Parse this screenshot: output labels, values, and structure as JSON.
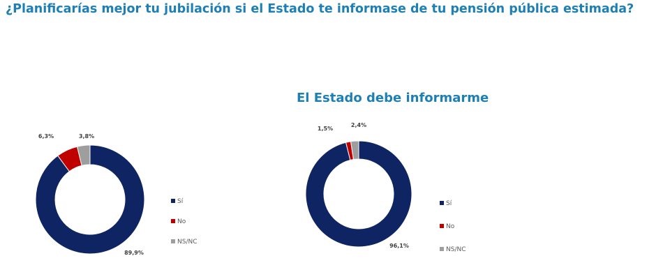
{
  "page": {
    "title": "¿Planificarías mejor tu jubilación si el Estado te informase de tu pensión pública estimada?"
  },
  "chart_data": [
    {
      "type": "pie",
      "style": "donut",
      "title": "",
      "categories": [
        "Sí",
        "No",
        "NS/NC"
      ],
      "values": [
        89.9,
        6.3,
        3.8
      ],
      "value_labels": [
        "89,9%",
        "6,3%",
        "3,8%"
      ],
      "colors": [
        "#0e2463",
        "#c00000",
        "#9e9e9e"
      ],
      "legend": {
        "position": "right",
        "entries": [
          "Sí",
          "No",
          "NS/NC"
        ]
      }
    },
    {
      "type": "pie",
      "style": "donut",
      "title": "El Estado debe informarme",
      "categories": [
        "Sí",
        "No",
        "NS/NC"
      ],
      "values": [
        96.1,
        1.5,
        2.4
      ],
      "value_labels": [
        "96,1%",
        "1,5%",
        "2,4%"
      ],
      "colors": [
        "#0e2463",
        "#c00000",
        "#9e9e9e"
      ],
      "legend": {
        "position": "right",
        "entries": [
          "Sí",
          "No",
          "NS/NC"
        ]
      }
    }
  ]
}
